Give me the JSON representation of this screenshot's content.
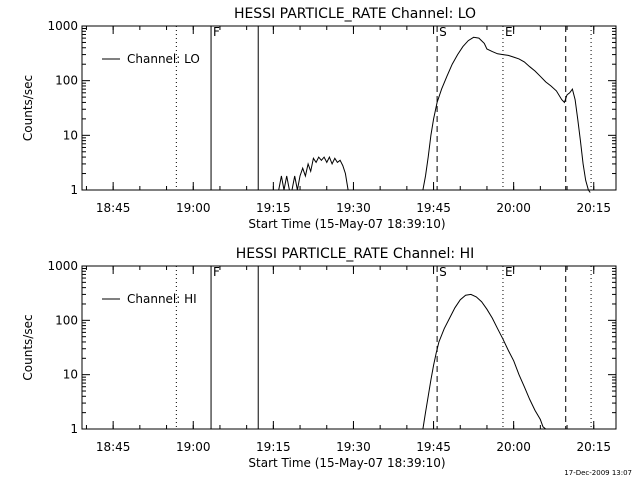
{
  "chart_data": [
    {
      "type": "line",
      "title": "HESSI PARTICLE_RATE Channel: LO",
      "xlabel": "Start Time (15-May-07 18:39:10)",
      "ylabel": "Counts/sec",
      "yscale": "log",
      "ylim": [
        1,
        1000
      ],
      "xlim": [
        "18:39:10",
        "20:19:10"
      ],
      "x_ticks": [
        "18:45",
        "19:00",
        "19:15",
        "19:30",
        "19:45",
        "20:00",
        "20:15"
      ],
      "y_ticks": [
        "1",
        "10",
        "100",
        "1000"
      ],
      "legend": {
        "position": "top-left",
        "entries": [
          "Channel: LO"
        ]
      },
      "grid": false,
      "markers": [
        {
          "time": "18:56:50",
          "style": "dotted",
          "label": ""
        },
        {
          "time": "19:03:20",
          "style": "solid",
          "label": "F"
        },
        {
          "time": "19:12:10",
          "style": "solid",
          "label": ""
        },
        {
          "time": "19:45:40",
          "style": "dashed",
          "label": "S"
        },
        {
          "time": "19:58:00",
          "style": "dotted",
          "label": "E"
        },
        {
          "time": "20:09:45",
          "style": "dashed",
          "label": ""
        },
        {
          "time": "20:14:30",
          "style": "dotted",
          "label": ""
        }
      ],
      "series": [
        {
          "name": "Channel: LO",
          "x": [
            "19:16:00",
            "19:16:30",
            "19:17:00",
            "19:17:30",
            "19:18:00",
            "19:18:30",
            "19:19:00",
            "19:19:30",
            "19:20:00",
            "19:20:30",
            "19:21:00",
            "19:21:30",
            "19:22:00",
            "19:22:30",
            "19:23:00",
            "19:23:30",
            "19:24:00",
            "19:24:30",
            "19:25:00",
            "19:25:30",
            "19:26:00",
            "19:26:30",
            "19:27:00",
            "19:27:30",
            "19:28:00",
            "19:28:30",
            "19:29:00",
            "19:43:00",
            "19:43:30",
            "19:44:00",
            "19:44:30",
            "19:45:00",
            "19:45:40",
            "19:46:30",
            "19:47:30",
            "19:48:30",
            "19:49:30",
            "19:50:30",
            "19:51:30",
            "19:52:30",
            "19:53:30",
            "19:54:30",
            "19:55:00",
            "19:56:00",
            "19:57:00",
            "19:58:00",
            "19:59:00",
            "20:00:00",
            "20:01:00",
            "20:02:00",
            "20:03:00",
            "20:04:00",
            "20:05:00",
            "20:06:00",
            "20:07:00",
            "20:08:00",
            "20:09:00",
            "20:09:30",
            "20:10:00",
            "20:10:30",
            "20:11:00",
            "20:11:30",
            "20:12:00",
            "20:12:30",
            "20:13:00",
            "20:13:30",
            "20:14:00",
            "20:14:20"
          ],
          "values": [
            1.0,
            1.8,
            1.0,
            1.8,
            1.0,
            1.0,
            1.8,
            1.0,
            1.8,
            2.5,
            1.8,
            3.0,
            2.2,
            3.8,
            3.2,
            4.0,
            3.5,
            4.0,
            3.2,
            4.0,
            3.0,
            3.8,
            3.2,
            3.5,
            2.8,
            2.0,
            1.0,
            1.0,
            1.8,
            4.0,
            10,
            20,
            40,
            70,
            120,
            200,
            300,
            420,
            540,
            620,
            600,
            480,
            380,
            340,
            310,
            300,
            290,
            270,
            250,
            220,
            180,
            150,
            120,
            95,
            80,
            65,
            45,
            40,
            55,
            60,
            70,
            45,
            20,
            8,
            3,
            1.5,
            1.0,
            0.9
          ]
        }
      ]
    },
    {
      "type": "line",
      "title": "HESSI PARTICLE_RATE Channel: HI",
      "xlabel": "Start Time (15-May-07 18:39:10)",
      "ylabel": "Counts/sec",
      "yscale": "log",
      "ylim": [
        1,
        1000
      ],
      "xlim": [
        "18:39:10",
        "20:19:10"
      ],
      "x_ticks": [
        "18:45",
        "19:00",
        "19:15",
        "19:30",
        "19:45",
        "20:00",
        "20:15"
      ],
      "y_ticks": [
        "1",
        "10",
        "100",
        "1000"
      ],
      "legend": {
        "position": "top-left",
        "entries": [
          "Channel: HI"
        ]
      },
      "grid": false,
      "markers": [
        {
          "time": "18:56:50",
          "style": "dotted",
          "label": ""
        },
        {
          "time": "19:03:20",
          "style": "solid",
          "label": "F"
        },
        {
          "time": "19:12:10",
          "style": "solid",
          "label": ""
        },
        {
          "time": "19:45:40",
          "style": "dashed",
          "label": "S"
        },
        {
          "time": "19:58:00",
          "style": "dotted",
          "label": "E"
        },
        {
          "time": "20:09:45",
          "style": "dashed",
          "label": ""
        },
        {
          "time": "20:14:30",
          "style": "dotted",
          "label": ""
        }
      ],
      "series": [
        {
          "name": "Channel: HI",
          "x": [
            "19:43:00",
            "19:43:30",
            "19:44:00",
            "19:44:30",
            "19:45:00",
            "19:45:30",
            "19:46:00",
            "19:47:00",
            "19:48:00",
            "19:49:00",
            "19:50:00",
            "19:51:00",
            "19:52:00",
            "19:53:00",
            "19:54:00",
            "19:55:00",
            "19:56:00",
            "19:57:00",
            "19:58:00",
            "19:59:00",
            "20:00:00",
            "20:01:00",
            "20:02:00",
            "20:03:00",
            "20:04:00",
            "20:05:00",
            "20:05:30",
            "20:06:00"
          ],
          "values": [
            1.0,
            2.0,
            4.0,
            8,
            15,
            25,
            40,
            70,
            110,
            170,
            240,
            290,
            300,
            270,
            220,
            160,
            110,
            70,
            45,
            28,
            18,
            10,
            6,
            3.5,
            2.2,
            1.5,
            1.1,
            1.0
          ]
        }
      ]
    }
  ],
  "footer": {
    "date": "17-Dec-2009 13:07"
  }
}
